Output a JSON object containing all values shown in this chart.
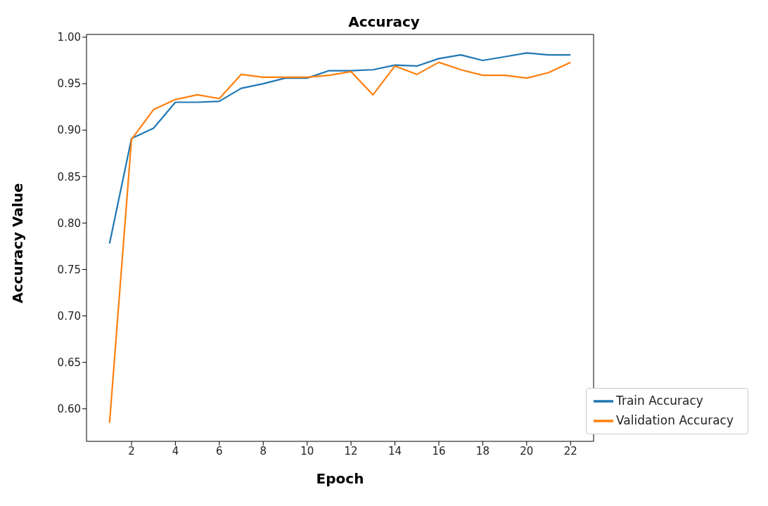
{
  "chart_data": {
    "type": "line",
    "title": "Accuracy",
    "xlabel": "Epoch",
    "ylabel": "Accuracy Value",
    "x": [
      1,
      2,
      3,
      4,
      5,
      6,
      7,
      8,
      9,
      10,
      11,
      12,
      13,
      14,
      15,
      16,
      17,
      18,
      19,
      20,
      21,
      22
    ],
    "series": [
      {
        "name": "Train Accuracy",
        "color": "#1f77b4",
        "values": [
          0.778,
          0.891,
          0.902,
          0.93,
          0.93,
          0.931,
          0.945,
          0.95,
          0.956,
          0.956,
          0.964,
          0.964,
          0.965,
          0.97,
          0.969,
          0.977,
          0.981,
          0.975,
          0.979,
          0.983,
          0.981,
          0.981
        ]
      },
      {
        "name": "Validation Accuracy",
        "color": "#ff7f0e",
        "values": [
          0.585,
          0.89,
          0.922,
          0.933,
          0.938,
          0.934,
          0.96,
          0.957,
          0.957,
          0.957,
          0.959,
          0.963,
          0.938,
          0.969,
          0.96,
          0.973,
          0.965,
          0.959,
          0.959,
          0.956,
          0.962,
          0.973
        ]
      }
    ],
    "xlim": [
      -0.05,
      23.05
    ],
    "xticks": [
      2,
      4,
      6,
      8,
      10,
      12,
      14,
      16,
      18,
      20,
      22
    ],
    "ylim": [
      0.565,
      1.003
    ],
    "yticks": [
      {
        "value": 0.6,
        "label": "0.60"
      },
      {
        "value": 0.65,
        "label": "0.65"
      },
      {
        "value": 0.7,
        "label": "0.70"
      },
      {
        "value": 0.75,
        "label": "0.75"
      },
      {
        "value": 0.8,
        "label": "0.80"
      },
      {
        "value": 0.85,
        "label": "0.85"
      },
      {
        "value": 0.9,
        "label": "0.90"
      },
      {
        "value": 0.95,
        "label": "0.95"
      },
      {
        "value": 1.0,
        "label": "1.00"
      }
    ],
    "grid": false,
    "legend": "bottom right",
    "marker": "none",
    "line_style": "solid"
  }
}
